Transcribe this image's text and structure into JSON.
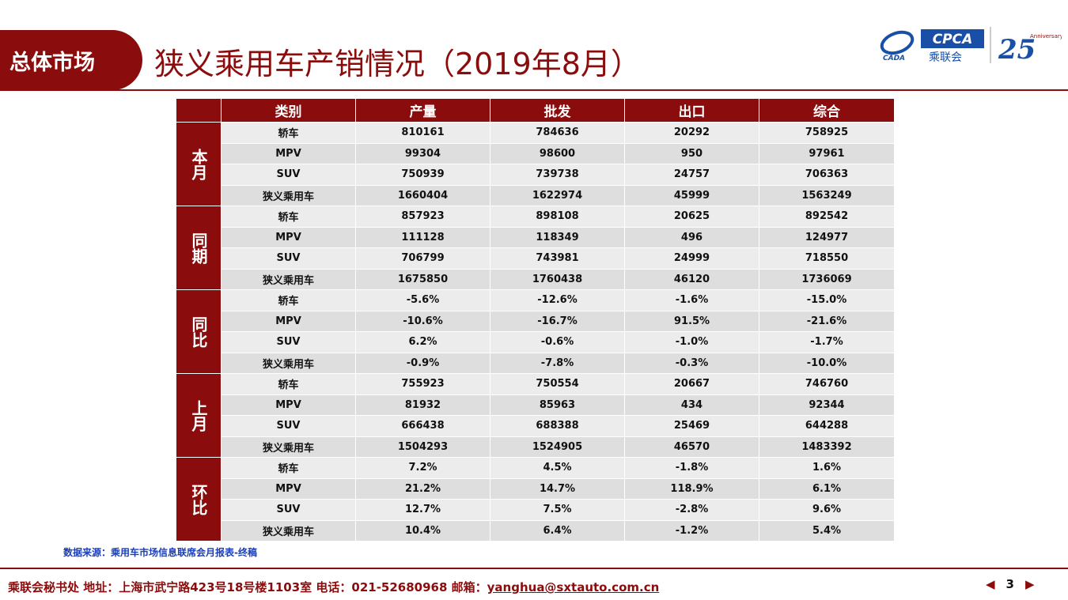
{
  "header": {
    "section_tag": "总体市场",
    "title": "狭义乘用车产销情况（2019年8月）"
  },
  "logos": {
    "cpca_text": "CPCA",
    "cpca_cn": "乘联会",
    "cadr_text": "CADA",
    "anniv_text": "25",
    "anniv_sub": "Anniversary"
  },
  "table": {
    "headers": [
      "类别",
      "产量",
      "批发",
      "出口",
      "综合"
    ],
    "groups": [
      {
        "label": "本月",
        "rows": [
          [
            "轿车",
            "810161",
            "784636",
            "20292",
            "758925"
          ],
          [
            "MPV",
            "99304",
            "98600",
            "950",
            "97961"
          ],
          [
            "SUV",
            "750939",
            "739738",
            "24757",
            "706363"
          ],
          [
            "狭义乘用车",
            "1660404",
            "1622974",
            "45999",
            "1563249"
          ]
        ]
      },
      {
        "label": "同期",
        "rows": [
          [
            "轿车",
            "857923",
            "898108",
            "20625",
            "892542"
          ],
          [
            "MPV",
            "111128",
            "118349",
            "496",
            "124977"
          ],
          [
            "SUV",
            "706799",
            "743981",
            "24999",
            "718550"
          ],
          [
            "狭义乘用车",
            "1675850",
            "1760438",
            "46120",
            "1736069"
          ]
        ]
      },
      {
        "label": "同比",
        "rows": [
          [
            "轿车",
            "-5.6%",
            "-12.6%",
            "-1.6%",
            "-15.0%"
          ],
          [
            "MPV",
            "-10.6%",
            "-16.7%",
            "91.5%",
            "-21.6%"
          ],
          [
            "SUV",
            "6.2%",
            "-0.6%",
            "-1.0%",
            "-1.7%"
          ],
          [
            "狭义乘用车",
            "-0.9%",
            "-7.8%",
            "-0.3%",
            "-10.0%"
          ]
        ]
      },
      {
        "label": "上月",
        "rows": [
          [
            "轿车",
            "755923",
            "750554",
            "20667",
            "746760"
          ],
          [
            "MPV",
            "81932",
            "85963",
            "434",
            "92344"
          ],
          [
            "SUV",
            "666438",
            "688388",
            "25469",
            "644288"
          ],
          [
            "狭义乘用车",
            "1504293",
            "1524905",
            "46570",
            "1483392"
          ]
        ]
      },
      {
        "label": "环比",
        "rows": [
          [
            "轿车",
            "7.2%",
            "4.5%",
            "-1.8%",
            "1.6%"
          ],
          [
            "MPV",
            "21.2%",
            "14.7%",
            "118.9%",
            "6.1%"
          ],
          [
            "SUV",
            "12.7%",
            "7.5%",
            "-2.8%",
            "9.6%"
          ],
          [
            "狭义乘用车",
            "10.4%",
            "6.4%",
            "-1.2%",
            "5.4%"
          ]
        ]
      }
    ]
  },
  "source": "数据来源：乘用车市场信息联席会月报表-终稿",
  "footer": {
    "text": "乘联会秘书处   地址：上海市武宁路423号18号楼1103室  电话：021-52680968   邮箱：",
    "email": "yanghua@sxtauto.com.cn"
  },
  "pager": {
    "prev": "◀",
    "page": "3",
    "next": "▶"
  },
  "colors": {
    "brand": "#8b0c0c",
    "cell": "#ececec",
    "cell_alt": "#dedede",
    "source": "#1a3eb8"
  }
}
